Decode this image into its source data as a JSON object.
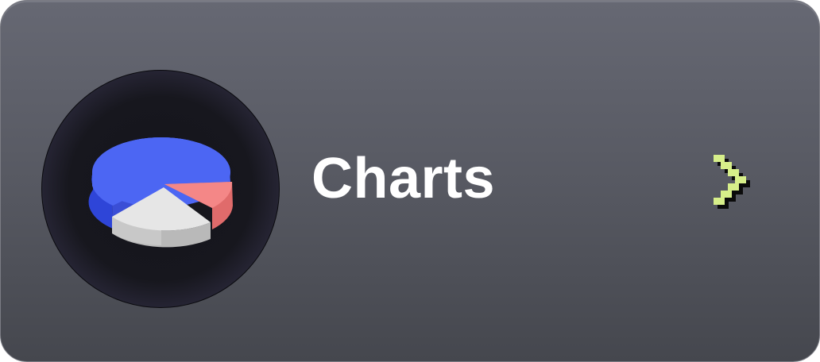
{
  "card": {
    "title": "Charts",
    "icon": "pie-chart-icon",
    "action_icon": "chevron-right-icon"
  },
  "colors": {
    "title": "#ffffff",
    "chevron": "#d7ef8a",
    "pie_blue": "#4a63f0",
    "pie_red": "#f48787",
    "pie_white": "#e6e6e6"
  }
}
